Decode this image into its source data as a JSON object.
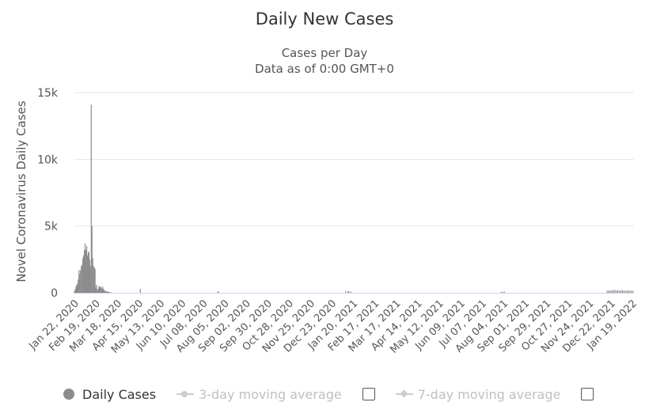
{
  "chart_data": {
    "type": "bar",
    "title": "Daily New Cases",
    "subtitle_lines": [
      "Cases per Day",
      "Data as of 0:00 GMT+0"
    ],
    "ylabel": "Novel Coronavirus Daily Cases",
    "xlabel": "",
    "ylim": [
      0,
      15000
    ],
    "yticks": [
      0,
      5000,
      10000,
      15000
    ],
    "ytick_labels": [
      "0",
      "5k",
      "10k",
      "15k"
    ],
    "x_start": "2020-01-22",
    "x_end": "2022-01-21",
    "xtick_labels": [
      "Jan 22, 2020",
      "Feb 19, 2020",
      "Mar 18, 2020",
      "Apr 15, 2020",
      "May 13, 2020",
      "Jun 10, 2020",
      "Jul 08, 2020",
      "Aug 05, 2020",
      "Sep 02, 2020",
      "Sep 30, 2020",
      "Oct 28, 2020",
      "Nov 25, 2020",
      "Dec 23, 2020",
      "Jan 20, 2021",
      "Feb 17, 2021",
      "Mar 17, 2021",
      "Apr 14, 2021",
      "May 12, 2021",
      "Jun 09, 2021",
      "Jul 07, 2021",
      "Aug 04, 2021",
      "Sep 01, 2021",
      "Sep 29, 2021",
      "Oct 27, 2021",
      "Nov 24, 2021",
      "Dec 22, 2021",
      "Jan 19, 2022"
    ],
    "grid": true,
    "series": [
      {
        "name": "Daily Cases",
        "color": "#8c8c8c",
        "x": [
          "2020-01-22",
          "2020-01-23",
          "2020-01-24",
          "2020-01-25",
          "2020-01-26",
          "2020-01-27",
          "2020-01-28",
          "2020-01-29",
          "2020-01-30",
          "2020-01-31",
          "2020-02-01",
          "2020-02-02",
          "2020-02-03",
          "2020-02-04",
          "2020-02-05",
          "2020-02-06",
          "2020-02-07",
          "2020-02-08",
          "2020-02-09",
          "2020-02-10",
          "2020-02-11",
          "2020-02-12",
          "2020-02-13",
          "2020-02-14",
          "2020-02-15",
          "2020-02-16",
          "2020-02-17",
          "2020-02-18",
          "2020-02-19",
          "2020-02-20",
          "2020-02-21",
          "2020-02-22",
          "2020-02-23",
          "2020-02-24",
          "2020-02-25",
          "2020-02-26",
          "2020-02-27",
          "2020-02-28",
          "2020-02-29",
          "2020-03-01",
          "2020-03-02",
          "2020-03-03",
          "2020-03-04",
          "2020-03-05",
          "2020-03-06",
          "2020-03-07",
          "2020-03-08",
          "2020-03-09",
          "2020-03-10",
          "2020-04-17",
          "2020-07-27",
          "2020-07-28",
          "2021-01-10",
          "2021-01-13",
          "2021-01-14",
          "2021-01-17",
          "2021-08-01",
          "2021-08-03",
          "2021-08-05",
          "2021-12-17",
          "2021-12-19",
          "2021-12-21",
          "2021-12-23",
          "2021-12-25",
          "2021-12-27",
          "2021-12-29",
          "2021-12-31",
          "2022-01-02",
          "2022-01-04",
          "2022-01-06",
          "2022-01-08",
          "2022-01-10",
          "2022-01-12",
          "2022-01-14",
          "2022-01-16",
          "2022-01-18",
          "2022-01-20"
        ],
        "values": [
          130,
          250,
          450,
          600,
          700,
          1000,
          1700,
          1400,
          1700,
          2000,
          2100,
          2600,
          2800,
          3200,
          3700,
          3200,
          3500,
          2800,
          3000,
          3100,
          2500,
          2000,
          14100,
          5000,
          2600,
          2000,
          1900,
          1800,
          400,
          600,
          200,
          300,
          500,
          400,
          500,
          400,
          300,
          450,
          300,
          200,
          150,
          100,
          120,
          100,
          80,
          60,
          40,
          30,
          20,
          300,
          100,
          80,
          150,
          120,
          130,
          90,
          80,
          70,
          90,
          160,
          180,
          150,
          200,
          190,
          220,
          170,
          200,
          150,
          180,
          210,
          160,
          140,
          190,
          170,
          150,
          180,
          130
        ]
      }
    ],
    "legend": {
      "items": [
        {
          "label": "Daily Cases",
          "active": true
        },
        {
          "label": "3-day moving average",
          "active": false
        },
        {
          "label": "7-day moving average",
          "active": false
        }
      ]
    }
  }
}
